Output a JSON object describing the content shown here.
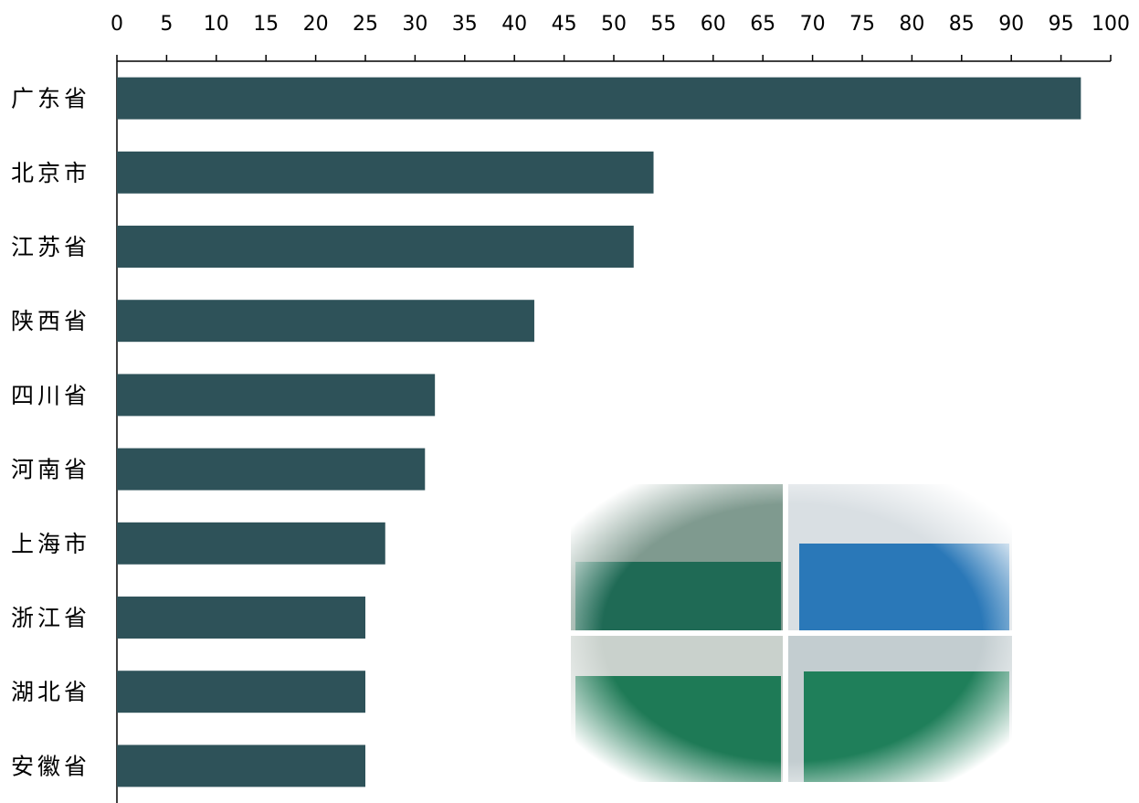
{
  "chart_data": {
    "type": "bar",
    "orientation": "horizontal",
    "categories": [
      "广东省",
      "北京市",
      "江苏省",
      "陕西省",
      "四川省",
      "河南省",
      "上海市",
      "浙江省",
      "湖北省",
      "安徽省"
    ],
    "values": [
      97,
      54,
      52,
      42,
      32,
      31,
      27,
      25,
      25,
      25
    ],
    "color": "#2e5259",
    "xlim": [
      0,
      100
    ],
    "xticks": [
      0,
      5,
      10,
      15,
      20,
      25,
      30,
      35,
      40,
      45,
      50,
      55,
      60,
      65,
      70,
      75,
      80,
      85,
      90,
      95,
      100
    ],
    "grid": false
  }
}
